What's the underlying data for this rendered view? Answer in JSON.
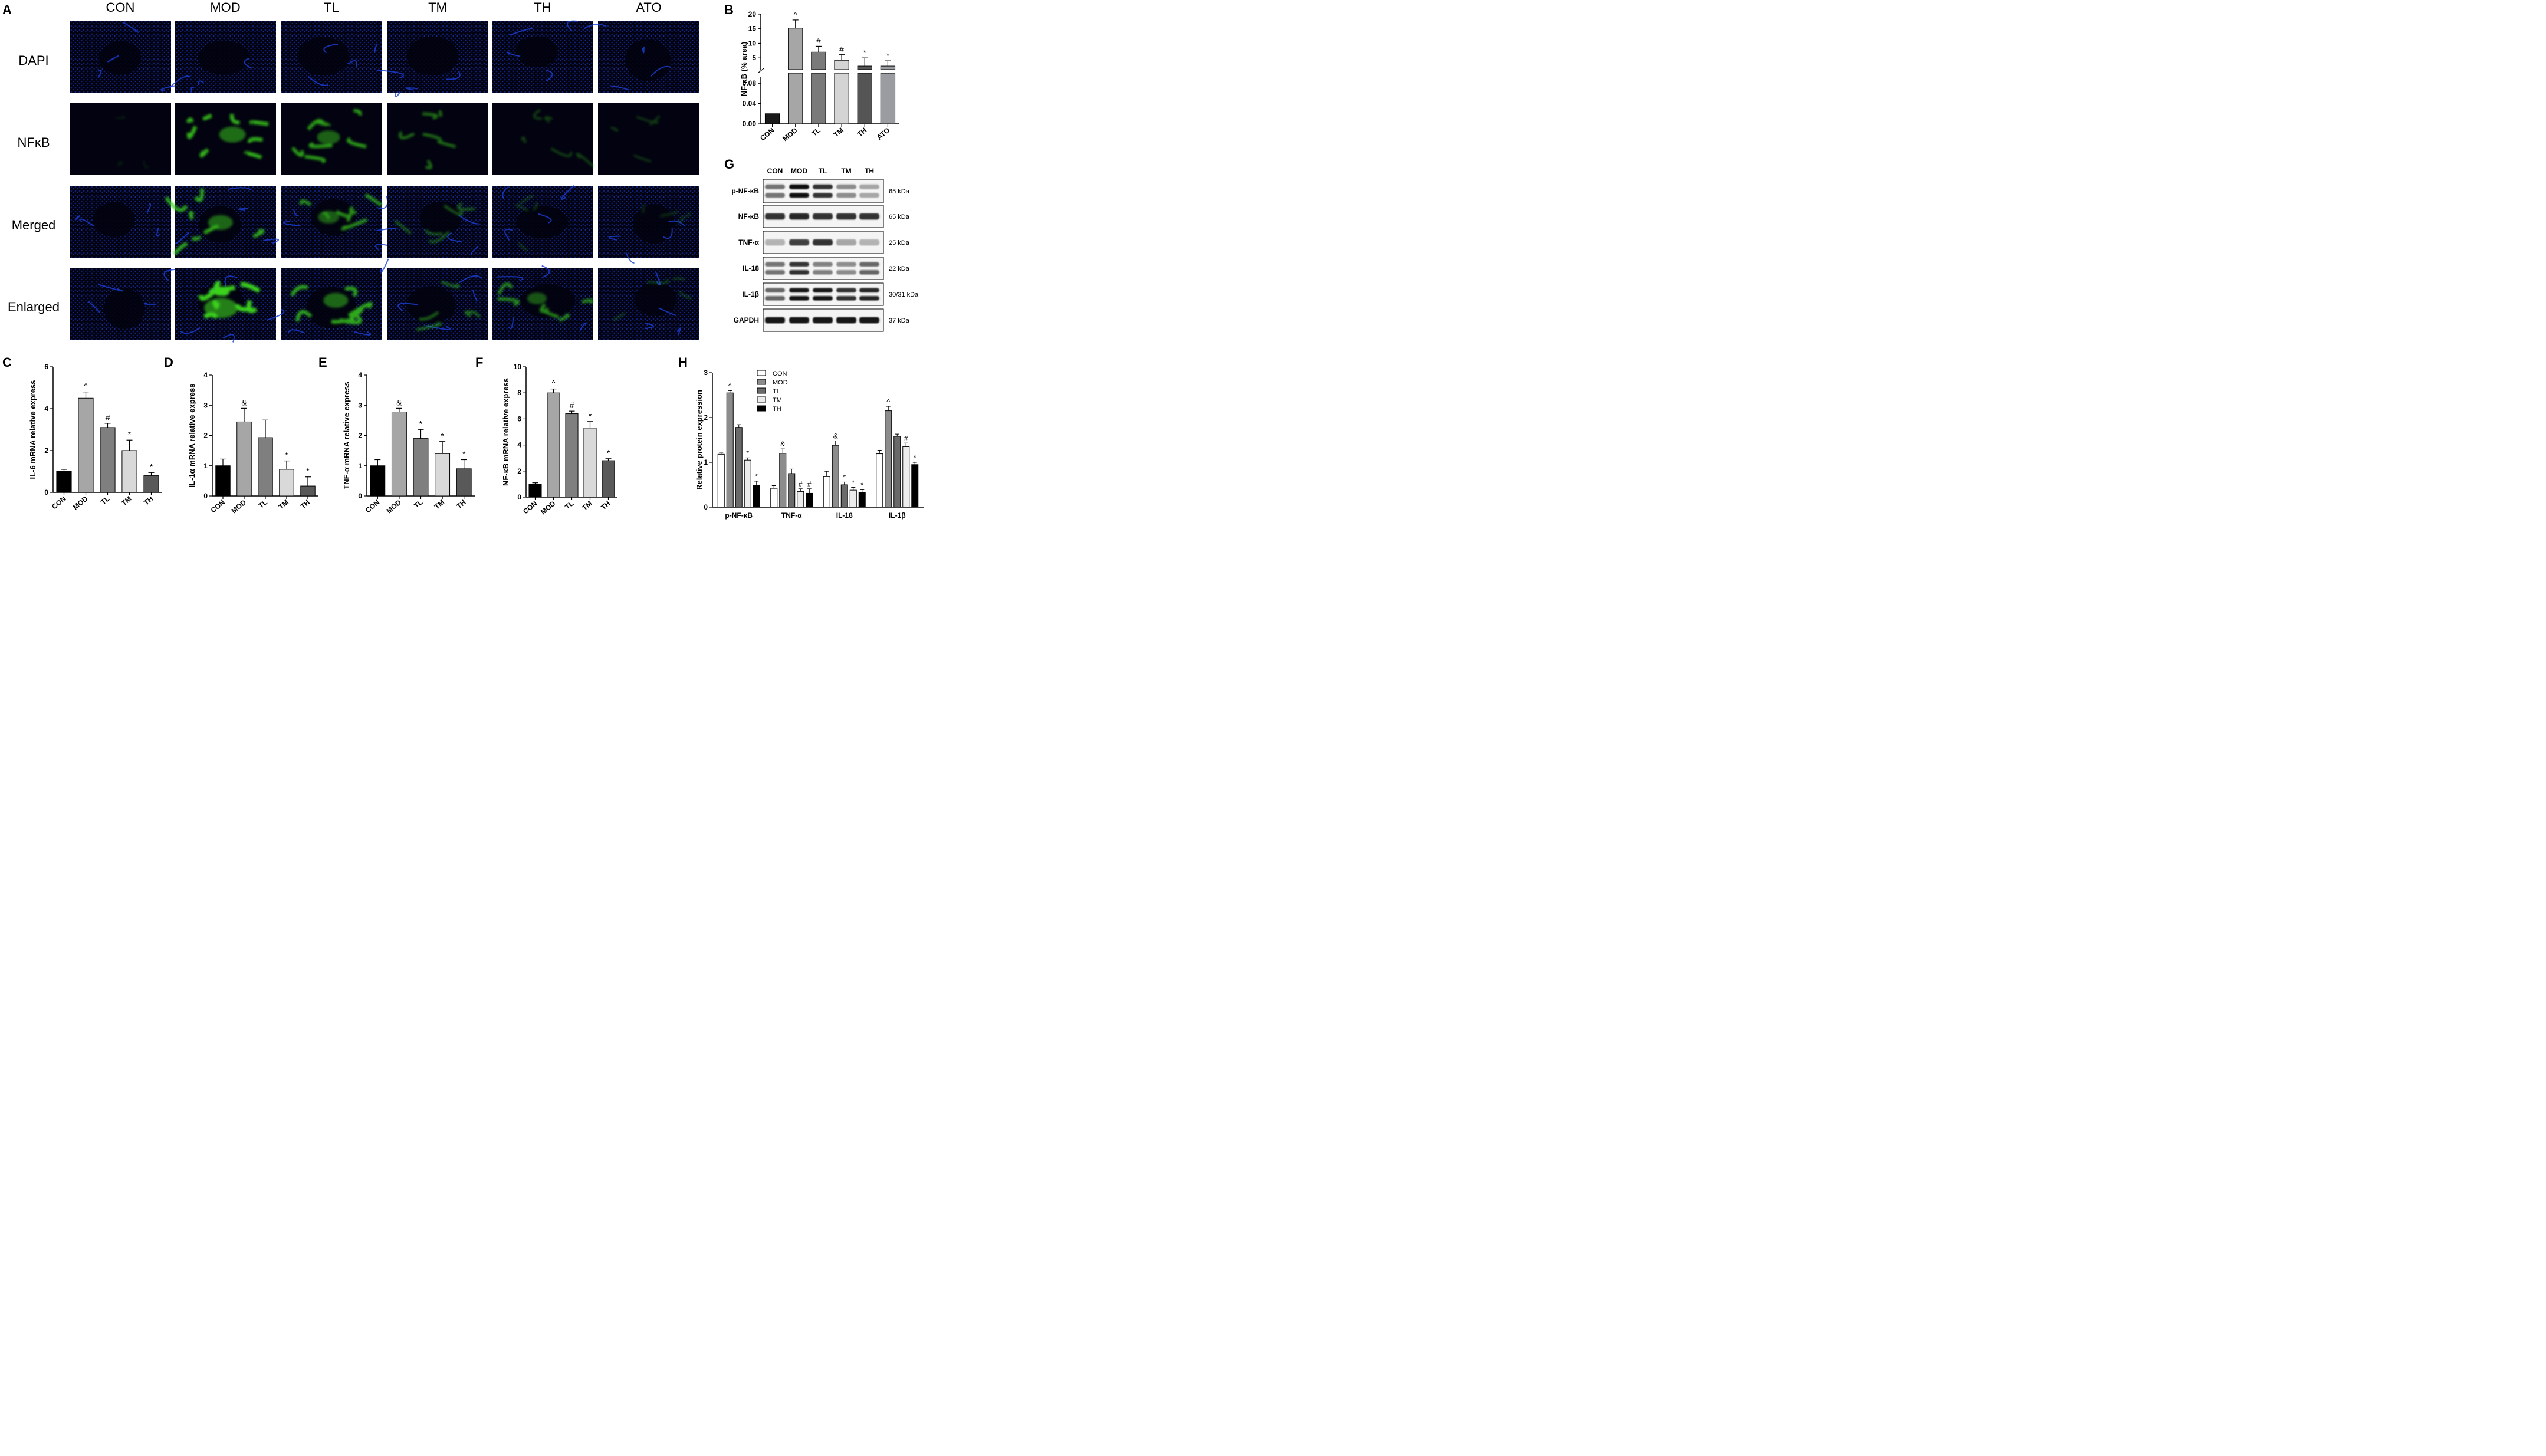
{
  "panels": {
    "A": {
      "letter": "A",
      "columns": [
        "CON",
        "MOD",
        "TL",
        "TM",
        "TH",
        "ATO"
      ],
      "rows": [
        {
          "label": "DAPI",
          "channel": "blue",
          "green": [
            0,
            0,
            0,
            0,
            0,
            0
          ]
        },
        {
          "label": "NFκB",
          "channel": "green",
          "green": [
            0.05,
            0.75,
            0.65,
            0.45,
            0.25,
            0.2
          ]
        },
        {
          "label": "Merged",
          "channel": "merged",
          "green": [
            0.0,
            0.7,
            0.6,
            0.35,
            0.2,
            0.15
          ]
        },
        {
          "label": "Enlarged",
          "channel": "merged",
          "green": [
            0.0,
            0.95,
            0.7,
            0.4,
            0.55,
            0.2
          ]
        }
      ],
      "colors": {
        "blue": "#1a3fd8",
        "green": "#3ad21c",
        "bg": "#020210"
      }
    },
    "B": {
      "letter": "B"
    },
    "C": {
      "letter": "C"
    },
    "D": {
      "letter": "D"
    },
    "E": {
      "letter": "E"
    },
    "F": {
      "letter": "F"
    },
    "G": {
      "letter": "G",
      "groups": [
        "CON",
        "MOD",
        "TL",
        "TM",
        "TH"
      ],
      "blots": [
        {
          "label": "p-NF-κB",
          "kda": "65 kDa",
          "intensity": [
            0.55,
            0.95,
            0.8,
            0.45,
            0.35
          ],
          "double": true
        },
        {
          "label": "NF-κB",
          "kda": "65 kDa",
          "intensity": [
            0.8,
            0.85,
            0.8,
            0.8,
            0.8
          ],
          "double": false
        },
        {
          "label": "TNF-α",
          "kda": "25 kDa",
          "intensity": [
            0.3,
            0.75,
            0.8,
            0.35,
            0.3
          ],
          "double": false
        },
        {
          "label": "IL-18",
          "kda": "22 kDa",
          "intensity": [
            0.55,
            0.8,
            0.5,
            0.45,
            0.6
          ],
          "double": true
        },
        {
          "label": "IL-1β",
          "kda": "30/31 kDa",
          "intensity": [
            0.6,
            0.9,
            0.9,
            0.8,
            0.85
          ],
          "double": true
        },
        {
          "label": "GAPDH",
          "kda": "37 kDa",
          "intensity": [
            0.9,
            0.9,
            0.9,
            0.9,
            0.9
          ],
          "double": false
        }
      ]
    },
    "H": {
      "letter": "H"
    }
  },
  "chart_data": [
    {
      "id": "B",
      "type": "bar",
      "categories": [
        "CON",
        "MOD",
        "TL",
        "TM",
        "TH",
        "ATO"
      ],
      "values": [
        0.02,
        15.2,
        7.0,
        4.2,
        2.2,
        2.2
      ],
      "errors": [
        0.001,
        2.8,
        2.0,
        2.0,
        2.8,
        1.8
      ],
      "colors": [
        "#1a1a1a",
        "#a6a6a6",
        "#7a7a7a",
        "#d4d4d4",
        "#555555",
        "#9a9ca2"
      ],
      "annotations": [
        "",
        "^",
        "#",
        "#",
        "*",
        "*"
      ],
      "ylabel": "NF-κB (% area)",
      "broken_axis": true,
      "lower_ylim": [
        0,
        0.1
      ],
      "lower_ticks": [
        "0.00",
        "0.04",
        "0.08"
      ],
      "upper_ylim": [
        1,
        20
      ],
      "upper_ticks": [
        "5",
        "10",
        "15",
        "20"
      ]
    },
    {
      "id": "C",
      "type": "bar",
      "categories": [
        "CON",
        "MOD",
        "TL",
        "TM",
        "TH"
      ],
      "values": [
        1.0,
        4.5,
        3.1,
        2.0,
        0.8
      ],
      "errors": [
        0.1,
        0.3,
        0.2,
        0.5,
        0.15
      ],
      "colors": [
        "#000000",
        "#a6a6a6",
        "#7f7f7f",
        "#d9d9d9",
        "#595959"
      ],
      "annotations": [
        "",
        "^",
        "#",
        "*",
        "*"
      ],
      "ylabel": "IL-6 mRNA relative express",
      "ylim": [
        0,
        6
      ],
      "yticks": [
        0,
        2,
        4,
        6
      ]
    },
    {
      "id": "D",
      "type": "bar",
      "categories": [
        "CON",
        "MOD",
        "TL",
        "TM",
        "TH"
      ],
      "values": [
        1.0,
        2.45,
        1.93,
        0.88,
        0.33
      ],
      "errors": [
        0.22,
        0.45,
        0.58,
        0.28,
        0.3
      ],
      "colors": [
        "#000000",
        "#a6a6a6",
        "#7f7f7f",
        "#d9d9d9",
        "#595959"
      ],
      "annotations": [
        "",
        "&",
        "",
        "*",
        "*"
      ],
      "ylabel": "IL-1α mRNA relative express",
      "ylim": [
        0,
        4
      ],
      "yticks": [
        0,
        1,
        2,
        3,
        4
      ]
    },
    {
      "id": "E",
      "type": "bar",
      "categories": [
        "CON",
        "MOD",
        "TL",
        "TM",
        "TH"
      ],
      "values": [
        1.0,
        2.78,
        1.9,
        1.4,
        0.9
      ],
      "errors": [
        0.2,
        0.12,
        0.3,
        0.4,
        0.3
      ],
      "colors": [
        "#000000",
        "#a6a6a6",
        "#7f7f7f",
        "#d9d9d9",
        "#595959"
      ],
      "annotations": [
        "",
        "&",
        "*",
        "*",
        "*"
      ],
      "ylabel": "TNF-α mRNA relative express",
      "ylim": [
        0,
        4
      ],
      "yticks": [
        0,
        1,
        2,
        3,
        4
      ]
    },
    {
      "id": "F",
      "type": "bar",
      "categories": [
        "CON",
        "MOD",
        "TL",
        "TM",
        "TH"
      ],
      "values": [
        1.0,
        8.0,
        6.4,
        5.3,
        2.8
      ],
      "errors": [
        0.1,
        0.3,
        0.2,
        0.5,
        0.15
      ],
      "colors": [
        "#000000",
        "#a6a6a6",
        "#7f7f7f",
        "#d9d9d9",
        "#595959"
      ],
      "annotations": [
        "",
        "^",
        "#",
        "*",
        "*"
      ],
      "ylabel": "NF-κB mRNA relative express",
      "ylim": [
        0,
        10
      ],
      "yticks": [
        0,
        2,
        4,
        6,
        8,
        10
      ]
    },
    {
      "id": "H",
      "type": "bar",
      "categories": [
        "p-NF-κB",
        "TNF-α",
        "IL-18",
        "IL-1β"
      ],
      "series": [
        {
          "name": "CON",
          "values": [
            1.18,
            0.42,
            0.68,
            1.19
          ],
          "errors": [
            0.03,
            0.06,
            0.12,
            0.08
          ],
          "color": "#ffffff",
          "annotations": [
            "",
            "",
            "",
            ""
          ]
        },
        {
          "name": "MOD",
          "values": [
            2.55,
            1.2,
            1.38,
            2.15
          ],
          "errors": [
            0.05,
            0.1,
            0.1,
            0.1
          ],
          "color": "#8c8c8c",
          "annotations": [
            "^",
            "&",
            "&",
            "^"
          ]
        },
        {
          "name": "TL",
          "values": [
            1.78,
            0.75,
            0.5,
            1.58
          ],
          "errors": [
            0.06,
            0.1,
            0.06,
            0.05
          ],
          "color": "#6a6a6a",
          "annotations": [
            "",
            "",
            "*",
            ""
          ]
        },
        {
          "name": "TM",
          "values": [
            1.05,
            0.35,
            0.38,
            1.35
          ],
          "errors": [
            0.05,
            0.06,
            0.06,
            0.08
          ],
          "color": "#ececec",
          "annotations": [
            "*",
            "#",
            "*",
            "#"
          ]
        },
        {
          "name": "TH",
          "values": [
            0.48,
            0.31,
            0.33,
            0.95
          ],
          "errors": [
            0.1,
            0.1,
            0.06,
            0.05
          ],
          "color": "#000000",
          "annotations": [
            "*",
            "#",
            "*",
            "*"
          ]
        }
      ],
      "ylabel": "Relative protein expression",
      "ylim": [
        0,
        3
      ],
      "yticks": [
        0,
        1,
        2,
        3
      ],
      "legend": "top-left"
    }
  ]
}
